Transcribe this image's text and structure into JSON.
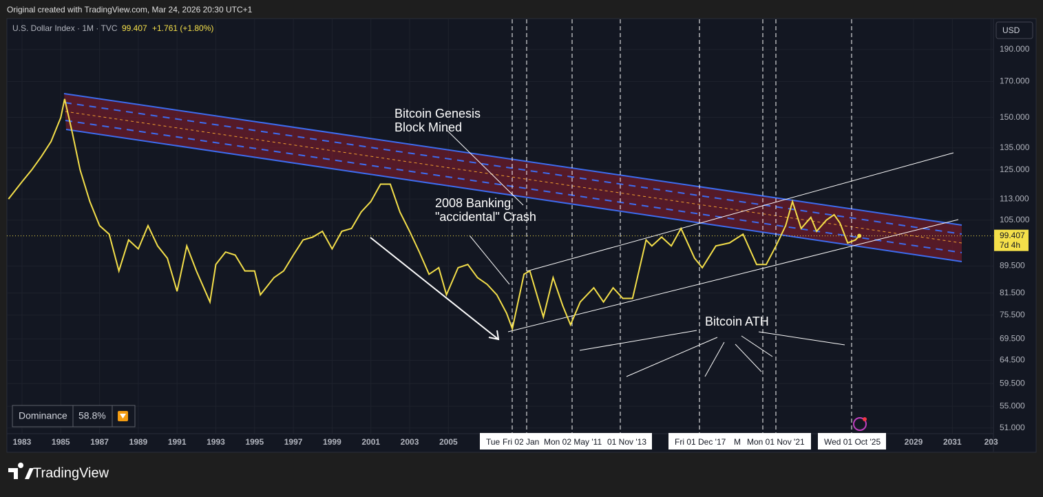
{
  "chart_data": {
    "type": "line",
    "credit": "Original created with TradingView.com, Mar 24, 2026 20:30 UTC+1",
    "title": "U.S. Dollar Index · 1M · TVC",
    "last_value": "99.407",
    "change": "+1.761 (+1.80%)",
    "currency": "USD",
    "countdown": "7d 4h",
    "color": "#f5e04a",
    "log_scale": true,
    "grid": true,
    "x": [
      1982.3,
      1983.0,
      1983.5,
      1984.0,
      1984.5,
      1985.0,
      1985.2,
      1985.6,
      1986.0,
      1986.5,
      1987.0,
      1987.5,
      1988.0,
      1988.5,
      1989.0,
      1989.5,
      1990.0,
      1990.5,
      1991.0,
      1991.5,
      1992.0,
      1992.7,
      1993.0,
      1993.5,
      1994.0,
      1994.5,
      1995.0,
      1995.3,
      1996.0,
      1996.5,
      1997.0,
      1997.5,
      1998.0,
      1998.5,
      1999.0,
      1999.5,
      2000.0,
      2000.5,
      2001.0,
      2001.5,
      2002.0,
      2002.5,
      2003.0,
      2003.5,
      2004.0,
      2004.5,
      2004.9,
      2005.5,
      2006.0,
      2006.5,
      2007.0,
      2007.5,
      2008.0,
      2008.3,
      2008.9,
      2009.2,
      2009.9,
      2010.4,
      2010.9,
      2011.3,
      2011.8,
      2012.5,
      2013.0,
      2013.5,
      2014.0,
      2014.5,
      2015.2,
      2015.5,
      2016.0,
      2016.5,
      2017.0,
      2017.7,
      2018.1,
      2018.8,
      2019.5,
      2020.2,
      2020.9,
      2021.4,
      2021.9,
      2022.4,
      2022.75,
      2023.2,
      2023.7,
      2024.0,
      2024.5,
      2024.9,
      2025.2,
      2025.6,
      2026.0,
      2026.2
    ],
    "values": [
      113,
      120,
      125,
      131,
      138,
      150,
      160,
      142,
      125,
      112,
      103,
      100,
      88,
      98,
      95,
      103,
      96,
      92,
      82,
      96,
      88,
      79,
      90,
      94,
      93,
      88,
      88,
      81,
      86,
      88,
      93,
      98,
      99,
      101,
      95,
      101,
      102,
      108,
      112,
      119,
      119,
      108,
      101,
      94,
      87,
      89,
      81,
      89,
      90,
      86,
      84,
      81,
      76,
      72,
      87,
      88,
      75,
      86,
      78,
      73,
      79,
      83,
      79,
      83,
      80,
      80,
      98,
      96,
      99,
      96,
      102,
      92,
      89,
      96,
      97,
      100,
      90,
      90,
      96,
      103,
      112,
      102,
      106,
      101,
      105,
      107,
      104,
      97,
      98,
      99.407
    ],
    "xlim": [
      1982.22,
      2033.12
    ],
    "xticks": [
      1983,
      1985,
      1987,
      1989,
      1991,
      1993,
      1995,
      1997,
      1999,
      2001,
      2003,
      2005,
      2029,
      2031,
      {
        "value": 2033,
        "label": "203"
      }
    ],
    "ylim": [
      50,
      211
    ],
    "yticks": [
      {
        "value": 190,
        "label": "190.000"
      },
      {
        "value": 170,
        "label": "170.000"
      },
      {
        "value": 150,
        "label": "150.000"
      },
      {
        "value": 135,
        "label": "135.000"
      },
      {
        "value": 125,
        "label": "125.000"
      },
      {
        "value": 113,
        "label": "113.000"
      },
      {
        "value": 105,
        "label": "105.000"
      },
      {
        "value": 89.5,
        "label": "89.500"
      },
      {
        "value": 81.5,
        "label": "81.500"
      },
      {
        "value": 75.5,
        "label": "75.500"
      },
      {
        "value": 69.5,
        "label": "69.500"
      },
      {
        "value": 64.5,
        "label": "64.500"
      },
      {
        "value": 59.5,
        "label": "59.500"
      },
      {
        "value": 55,
        "label": "55.000"
      },
      {
        "value": 51,
        "label": "51.000"
      }
    ],
    "annotations": [
      {
        "lines": [
          "Bitcoin Genesis",
          "Block Mined"
        ]
      },
      {
        "lines": [
          "2008 Banking",
          "\"accidental\" Crash"
        ]
      },
      {
        "lines": [
          "Bitcoin ATH"
        ]
      }
    ],
    "date_labels": [
      "Tue",
      "Fri 02 Jan",
      "Mon 02 May '11",
      "01 Nov '13",
      "Fri 01 Dec '17",
      "M",
      "Mon 01 Nov '21",
      "Wed 01 Oct '25"
    ],
    "dominance": {
      "label": "Dominance",
      "value": "58.8%"
    },
    "brand": "TradingView"
  }
}
